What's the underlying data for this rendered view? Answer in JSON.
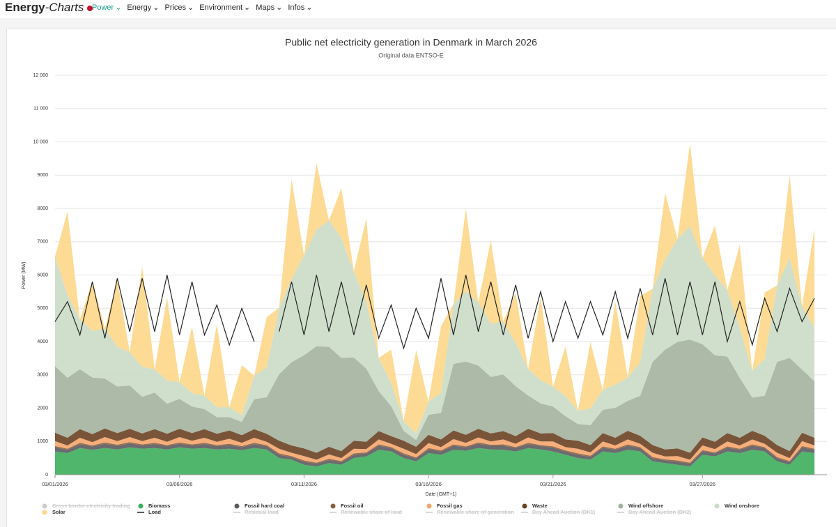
{
  "nav": {
    "logo_bold": "Energy",
    "logo_italic": "-Charts",
    "menu": [
      "Power",
      "Energy",
      "Prices",
      "Environment",
      "Maps",
      "Infos"
    ]
  },
  "chart_data": {
    "type": "area",
    "title": "Public net electricity generation in Denmark in March 2026",
    "subtitle": "Original data ENTSO-E",
    "x_label": "Date (GMT+1)",
    "y_label": "Power (MW)",
    "categories": [
      "03/01/2026",
      null,
      null,
      null,
      null,
      null,
      null,
      null,
      null,
      null,
      "03/06/2026",
      null,
      null,
      null,
      null,
      null,
      null,
      null,
      null,
      null,
      "03/11/2026",
      null,
      null,
      null,
      null,
      null,
      null,
      null,
      null,
      null,
      "03/16/2026",
      null,
      null,
      null,
      null,
      null,
      null,
      null,
      null,
      null,
      "03/21/2026",
      null,
      null,
      null,
      null,
      null,
      null,
      null,
      null,
      null,
      null,
      null,
      "03/27/2026",
      null,
      null,
      null,
      null,
      null,
      null,
      null,
      null,
      null
    ],
    "xticks": [
      "03/01/2026",
      "03/06/2026",
      "03/11/2026",
      "03/16/2026",
      "03/21/2026",
      "03/27/2026"
    ],
    "ylim": [
      0,
      12000
    ],
    "yticks": [
      0,
      1000,
      2000,
      3000,
      4000,
      5000,
      6000,
      7000,
      8000,
      9000,
      {
        "value": 10000,
        "label": "10 000"
      },
      {
        "value": 11000,
        "label": "11 000"
      },
      {
        "value": 12000,
        "label": "12 000"
      }
    ],
    "grid": true,
    "series": [
      {
        "name": "Biomass",
        "color": "#3dae5c",
        "values": [
          700,
          650,
          800,
          750,
          800,
          760,
          820,
          780,
          800,
          760,
          820,
          780,
          800,
          760,
          780,
          740,
          800,
          760,
          500,
          450,
          300,
          250,
          350,
          300,
          500,
          550,
          750,
          700,
          500,
          400,
          650,
          600,
          750,
          720,
          800,
          760,
          750,
          700,
          800,
          760,
          700,
          600,
          500,
          450,
          700,
          650,
          750,
          700,
          400,
          350,
          300,
          250,
          600,
          550,
          700,
          650,
          750,
          700,
          400,
          300,
          700,
          650
        ]
      },
      {
        "name": "Fossil hard coal",
        "color": "#5b5b60",
        "values": [
          120,
          100,
          120,
          100,
          130,
          110,
          120,
          100,
          120,
          100,
          110,
          100,
          120,
          100,
          110,
          90,
          120,
          100,
          100,
          80,
          90,
          80,
          90,
          80,
          100,
          90,
          120,
          100,
          100,
          90,
          110,
          100,
          120,
          100,
          130,
          110,
          120,
          100,
          120,
          100,
          110,
          100,
          100,
          90,
          110,
          100,
          120,
          100,
          90,
          80,
          90,
          80,
          100,
          90,
          110,
          100,
          120,
          100,
          90,
          80,
          120,
          100
        ]
      },
      {
        "name": "Fossil oil",
        "color": "#8b5e3c",
        "values": [
          40,
          30,
          40,
          30,
          40,
          30,
          40,
          30,
          40,
          30,
          40,
          30,
          40,
          30,
          40,
          30,
          40,
          30,
          40,
          30,
          40,
          30,
          40,
          30,
          40,
          30,
          40,
          30,
          40,
          30,
          40,
          30,
          40,
          30,
          40,
          30,
          40,
          30,
          40,
          30,
          40,
          30,
          40,
          30,
          40,
          30,
          40,
          30,
          40,
          30,
          40,
          30,
          40,
          30,
          40,
          30,
          40,
          30,
          40,
          30,
          40,
          30
        ]
      },
      {
        "name": "Fossil gas",
        "color": "#f5a56b",
        "values": [
          150,
          100,
          150,
          100,
          160,
          110,
          150,
          100,
          150,
          100,
          160,
          110,
          150,
          100,
          150,
          100,
          150,
          100,
          140,
          100,
          130,
          90,
          130,
          90,
          140,
          100,
          150,
          100,
          140,
          100,
          150,
          100,
          160,
          110,
          150,
          100,
          150,
          100,
          160,
          110,
          150,
          100,
          140,
          100,
          150,
          100,
          150,
          100,
          130,
          90,
          130,
          90,
          140,
          100,
          150,
          100,
          150,
          100,
          130,
          90,
          150,
          100
        ]
      },
      {
        "name": "Waste",
        "color": "#6b4123",
        "values": [
          250,
          230,
          260,
          240,
          260,
          240,
          250,
          230,
          260,
          240,
          250,
          230,
          260,
          240,
          250,
          230,
          260,
          240,
          240,
          220,
          230,
          210,
          230,
          210,
          240,
          220,
          250,
          230,
          240,
          220,
          250,
          230,
          260,
          240,
          260,
          240,
          250,
          230,
          260,
          240,
          250,
          230,
          240,
          220,
          250,
          230,
          260,
          240,
          230,
          210,
          230,
          210,
          240,
          220,
          250,
          230,
          260,
          240,
          230,
          210,
          250,
          230
        ]
      },
      {
        "name": "Wind offshore",
        "color": "#a3b39d",
        "values": [
          2000,
          1800,
          1800,
          1700,
          1500,
          1400,
          1300,
          1100,
          1100,
          900,
          900,
          800,
          600,
          500,
          400,
          400,
          900,
          1100,
          2000,
          2500,
          2800,
          3200,
          3000,
          2800,
          2500,
          2200,
          1200,
          900,
          300,
          200,
          600,
          800,
          2000,
          2200,
          1900,
          1700,
          1700,
          1500,
          1000,
          900,
          800,
          700,
          500,
          600,
          700,
          900,
          900,
          1200,
          2500,
          3000,
          3200,
          3400,
          2800,
          2600,
          2300,
          1800,
          1000,
          1200,
          2500,
          2800,
          1900,
          1700
        ]
      },
      {
        "name": "Wind onshore",
        "color": "#cadcc5",
        "values": [
          3300,
          2500,
          1500,
          1400,
          1500,
          1200,
          1000,
          900,
          700,
          700,
          500,
          400,
          400,
          300,
          300,
          200,
          700,
          900,
          2000,
          2500,
          3000,
          3500,
          3800,
          3600,
          2600,
          2000,
          1000,
          700,
          300,
          200,
          400,
          600,
          1800,
          2100,
          1900,
          1600,
          1600,
          1300,
          800,
          700,
          600,
          600,
          400,
          500,
          600,
          700,
          700,
          1000,
          2200,
          2700,
          3100,
          3400,
          2600,
          2400,
          2000,
          1500,
          800,
          1100,
          2300,
          3000,
          1900,
          1600
        ]
      },
      {
        "name": "Solar",
        "color": "#fdd788",
        "values": [
          0,
          2500,
          0,
          1500,
          0,
          2000,
          0,
          3000,
          0,
          2500,
          0,
          2000,
          0,
          2500,
          0,
          1500,
          0,
          1500,
          0,
          3000,
          0,
          2000,
          0,
          1500,
          0,
          2500,
          0,
          1000,
          0,
          2500,
          0,
          2000,
          0,
          2500,
          0,
          2500,
          0,
          1500,
          0,
          2500,
          0,
          1500,
          0,
          2000,
          0,
          2500,
          0,
          2000,
          0,
          2000,
          0,
          2500,
          0,
          1500,
          0,
          2500,
          0,
          2000,
          0,
          2500,
          0,
          3000
        ]
      },
      {
        "name": "Load",
        "color": "#222222",
        "line": true,
        "values": [
          4600,
          5200,
          4200,
          5800,
          4100,
          5900,
          4300,
          5900,
          4300,
          6000,
          4200,
          5800,
          4200,
          5100,
          3900,
          5000,
          4000,
          null,
          4300,
          5800,
          4200,
          6000,
          4300,
          5800,
          4200,
          5700,
          4100,
          5100,
          3800,
          5000,
          4100,
          5900,
          4200,
          6000,
          4300,
          5800,
          4200,
          5700,
          4100,
          5500,
          4000,
          5200,
          4100,
          5200,
          4200,
          5500,
          4100,
          5600,
          4200,
          5900,
          4200,
          5800,
          4200,
          5800,
          4000,
          5200,
          3900,
          5300,
          4300,
          5600,
          4600,
          5300
        ]
      }
    ],
    "hidden_series": [
      {
        "name": "Cross border electricity trading",
        "color": "#cccccc",
        "marker": "circle"
      },
      {
        "name": "Residual load",
        "color": "#cccccc",
        "marker": "line"
      },
      {
        "name": "Renewable share of load",
        "color": "#cccccc",
        "marker": "line"
      },
      {
        "name": "Renewable share of generation",
        "color": "#cccccc",
        "marker": "line"
      },
      {
        "name": "Day Ahead Auction (DK1)",
        "color": "#cccccc",
        "marker": "line"
      },
      {
        "name": "Day Ahead Auction (DK2)",
        "color": "#cccccc",
        "marker": "line"
      }
    ]
  }
}
